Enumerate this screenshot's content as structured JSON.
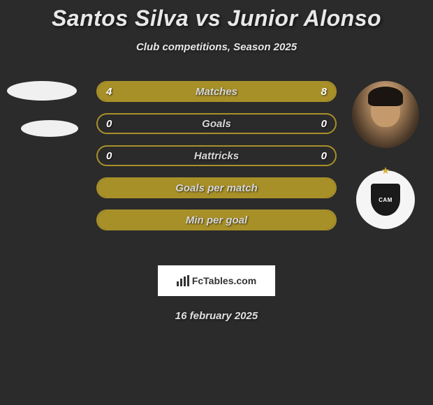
{
  "title": "Santos Silva vs Junior Alonso",
  "subtitle": "Club competitions, Season 2025",
  "date": "16 february 2025",
  "brand": "FcTables.com",
  "colors": {
    "player1": "#a89028",
    "player2": "#a89028",
    "neutral_fill": "#a89028",
    "background": "#2b2b2b"
  },
  "stats": [
    {
      "label": "Matches",
      "left_value": "4",
      "right_value": "8",
      "left_pct": 33,
      "right_pct": 67,
      "left_color": "#a89028",
      "right_color": "#a89028",
      "border_color": "#a89028"
    },
    {
      "label": "Goals",
      "left_value": "0",
      "right_value": "0",
      "left_pct": 0,
      "right_pct": 0,
      "left_color": "#a89028",
      "right_color": "#a89028",
      "border_color": "#a89028"
    },
    {
      "label": "Hattricks",
      "left_value": "0",
      "right_value": "0",
      "left_pct": 0,
      "right_pct": 0,
      "left_color": "#a89028",
      "right_color": "#a89028",
      "border_color": "#a89028"
    },
    {
      "label": "Goals per match",
      "left_value": "",
      "right_value": "",
      "left_pct": 100,
      "right_pct": 0,
      "full_fill": true,
      "fill_color": "#a89028",
      "border_color": "#a89028"
    },
    {
      "label": "Min per goal",
      "left_value": "",
      "right_value": "",
      "left_pct": 100,
      "right_pct": 0,
      "full_fill": true,
      "fill_color": "#a89028",
      "border_color": "#a89028"
    }
  ],
  "club_badge_text": "CAM"
}
